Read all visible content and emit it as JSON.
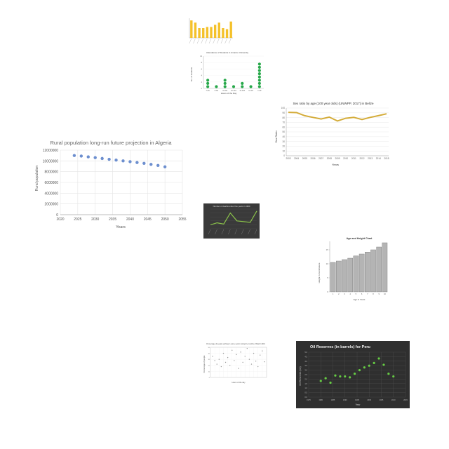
{
  "chart_data": [
    {
      "id": "c1",
      "type": "bar",
      "title": "",
      "categories": [
        "",
        "",
        "",
        "",
        "",
        "",
        "",
        "",
        "",
        "",
        ""
      ],
      "values": [
        8,
        7,
        4.5,
        4.5,
        5,
        5,
        6,
        7,
        4.5,
        4,
        7.5
      ],
      "ylim": [
        0,
        9
      ],
      "xlabel": "",
      "ylabel": "",
      "colors": {
        "bar": "#f4c12a"
      }
    },
    {
      "id": "c2",
      "type": "scatter",
      "title": "Attendance of Students in Amazon University",
      "categories": [
        "7-8A",
        "8-9A",
        "9-10A",
        "10-11A",
        "11-12A",
        "12-1P",
        "1-2P"
      ],
      "stacks": [
        3,
        1,
        3,
        1,
        2,
        1,
        8
      ],
      "ylim": [
        0,
        10
      ],
      "xlabel": "Hours of the Day",
      "ylabel": "No. of students",
      "colors": {
        "dot": "#27a84a"
      }
    },
    {
      "id": "c3",
      "type": "line",
      "title": "Sex ratio by age (100 year olds) (UNWPP, 2017) in Belize",
      "x": [
        "2003",
        "2004",
        "2005",
        "2006",
        "2007",
        "2008",
        "2009",
        "2010",
        "2011",
        "2012",
        "2013",
        "2014",
        "2015"
      ],
      "y": [
        91,
        90.5,
        84,
        80.5,
        77,
        81,
        73,
        78.5,
        80.5,
        76,
        80.5,
        84,
        88
      ],
      "ylim": [
        0,
        100
      ],
      "yticks": [
        "0",
        "10",
        "20",
        "30",
        "40",
        "50",
        "60",
        "70",
        "80",
        "90",
        "100"
      ],
      "xlabel": "Years",
      "ylabel": "Sex Ratio",
      "colors": {
        "line": "#d4ac3a"
      }
    },
    {
      "id": "c4",
      "type": "scatter",
      "title": "Rural population long-run future projection in Algeria",
      "x": [
        2024,
        2026,
        2028,
        2030,
        2032,
        2034,
        2036,
        2038,
        2040,
        2042,
        2044,
        2046,
        2048,
        2050
      ],
      "y": [
        11000000,
        10900000,
        10750000,
        10600000,
        10450000,
        10300000,
        10150000,
        10000000,
        9850000,
        9700000,
        9550000,
        9350000,
        9150000,
        8900000
      ],
      "xlim": [
        2020,
        2055
      ],
      "ylim": [
        0,
        12000000
      ],
      "xticks": [
        "2020",
        "2025",
        "2030",
        "2035",
        "2040",
        "2045",
        "2050",
        "2055"
      ],
      "yticks": [
        "0",
        "2000000",
        "4000000",
        "6000000",
        "8000000",
        "10000000",
        "12000000"
      ],
      "xlabel": "Years",
      "ylabel": "Rural population",
      "colors": {
        "dot": "#6d8fcf",
        "grid": "#e4e4e4"
      }
    },
    {
      "id": "c5",
      "type": "line",
      "title": "Number of deaths under five years in 1990",
      "values": [
        1,
        1.5,
        1.2,
        4,
        2,
        1.8,
        1.6,
        4.5
      ],
      "ylim": [
        0,
        5
      ],
      "colors": {
        "bg": "#3a3a3a",
        "line": "#8bc34a"
      }
    },
    {
      "id": "c6",
      "type": "bar",
      "title": "Age and Height Chart",
      "values": [
        10.5,
        11,
        11.5,
        12,
        12.8,
        13.5,
        14.2,
        15,
        16,
        17.5
      ],
      "ylim": [
        0,
        18
      ],
      "yticks": [
        "0",
        "5",
        "10",
        "15"
      ],
      "xlabel": "Age in Years",
      "ylabel": "Height in Centimeters",
      "colors": {
        "bar": "#b4b4b4",
        "edge": "#777777"
      }
    },
    {
      "id": "c7",
      "type": "scatter",
      "title": "Percentage of people working in some sector during the months of March 2019",
      "points": [
        [
          1,
          35
        ],
        [
          2,
          28
        ],
        [
          3,
          22
        ],
        [
          4,
          30
        ],
        [
          5,
          18
        ],
        [
          6,
          40
        ],
        [
          7,
          25
        ],
        [
          8,
          33
        ],
        [
          9,
          20
        ],
        [
          10,
          45
        ],
        [
          11,
          28
        ],
        [
          12,
          38
        ],
        [
          13,
          15
        ],
        [
          14,
          42
        ],
        [
          15,
          25
        ],
        [
          16,
          35
        ],
        [
          17,
          48
        ],
        [
          18,
          30
        ],
        [
          19,
          22
        ],
        [
          20,
          40
        ],
        [
          21,
          27
        ],
        [
          22,
          18
        ],
        [
          23,
          37
        ],
        [
          24,
          44
        ],
        [
          25,
          26
        ]
      ],
      "xlim": [
        0,
        26
      ],
      "ylim": [
        0,
        50
      ],
      "xlabel": "Hours of the day",
      "ylabel": "Percentage of people",
      "colors": {
        "dot": "#999999"
      }
    },
    {
      "id": "c8",
      "type": "scatter",
      "title": "Oil Reserves (in barrels) for Peru",
      "x": [
        1980,
        1982,
        1984,
        1986,
        1988,
        1990,
        1992,
        1994,
        1996,
        1998,
        2000,
        2002,
        2004,
        2006,
        2008,
        2010
      ],
      "y": [
        1.8,
        2.1,
        1.6,
        2.4,
        2.3,
        2.3,
        2.2,
        2.6,
        3.0,
        3.3,
        3.5,
        3.8,
        4.3,
        3.6,
        2.6,
        2.3
      ],
      "xlim": [
        1975,
        2015
      ],
      "ylim": [
        0,
        5
      ],
      "xlabel": "Year",
      "ylabel": "Oil Reserves (bn)",
      "colors": {
        "bg": "#2f2f2f",
        "dot": "#66cc44",
        "grid": "#555555"
      }
    }
  ]
}
